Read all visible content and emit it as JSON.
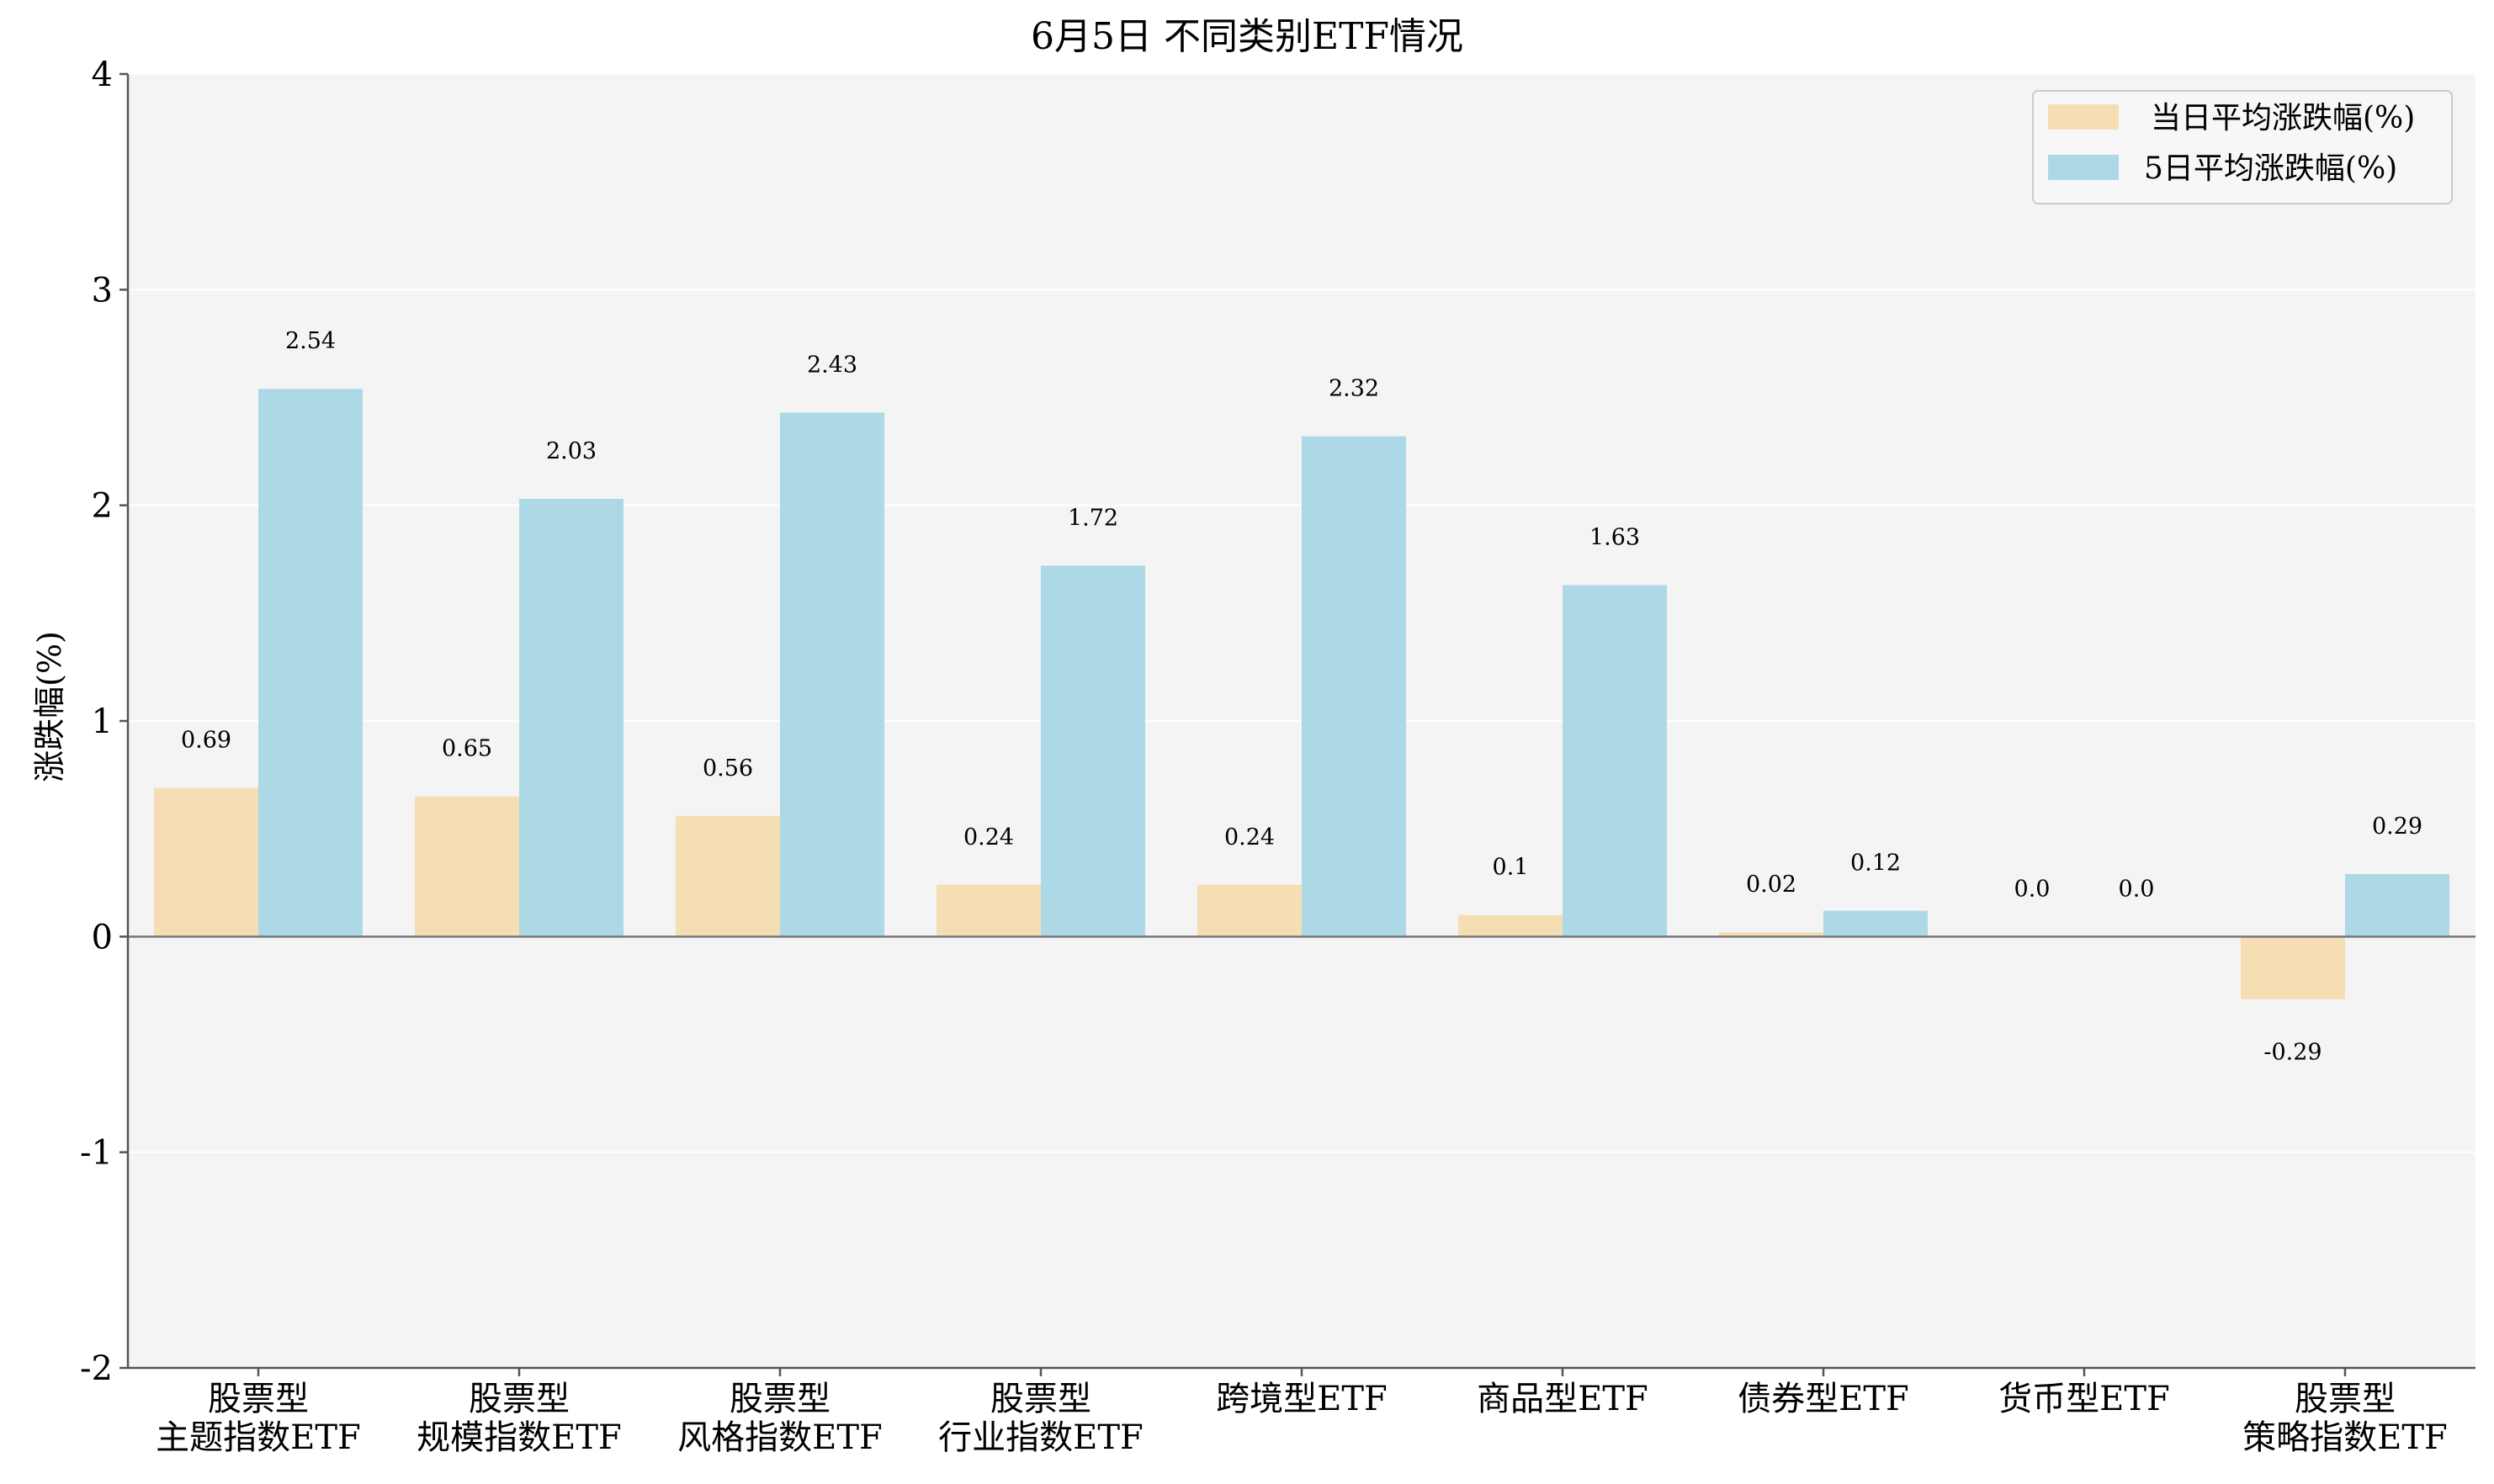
{
  "chart_data": {
    "type": "bar",
    "title": "6月5日 不同类别ETF情况",
    "ylabel": "涨跌幅(%)",
    "xlabel": "",
    "ylim": [
      -2,
      4
    ],
    "yticks": [
      4,
      3,
      2,
      1,
      0,
      -1,
      -2
    ],
    "grid": true,
    "legend_position": "top-right",
    "categories": [
      [
        "股票型",
        "主题指数ETF"
      ],
      [
        "股票型",
        "规模指数ETF"
      ],
      [
        "股票型",
        "风格指数ETF"
      ],
      [
        "股票型",
        "行业指数ETF"
      ],
      [
        "跨境型ETF"
      ],
      [
        "商品型ETF"
      ],
      [
        "债券型ETF"
      ],
      [
        "货币型ETF"
      ],
      [
        "股票型",
        "策略指数ETF"
      ]
    ],
    "series": [
      {
        "name": "当日平均涨跌幅(%)",
        "color": "#f5deb3",
        "values": [
          0.69,
          0.65,
          0.56,
          0.24,
          0.24,
          0.1,
          0.02,
          0.0,
          -0.29
        ],
        "labels": [
          "0.69",
          "0.65",
          "0.56",
          "0.24",
          "0.24",
          "0.1",
          "0.02",
          "0.0",
          "-0.29"
        ]
      },
      {
        "name": "5日平均涨跌幅(%)",
        "color": "#add8e6",
        "values": [
          2.54,
          2.03,
          2.43,
          1.72,
          2.32,
          1.63,
          0.12,
          0.0,
          0.29
        ],
        "labels": [
          "2.54",
          "2.03",
          "2.43",
          "1.72",
          "2.32",
          "1.63",
          "0.12",
          "0.0",
          "0.29"
        ]
      }
    ],
    "colors": {
      "plot_background": "#f4f4f4",
      "grid": "#ffffff",
      "axis": "#555555",
      "zero_line": "#777777"
    }
  }
}
